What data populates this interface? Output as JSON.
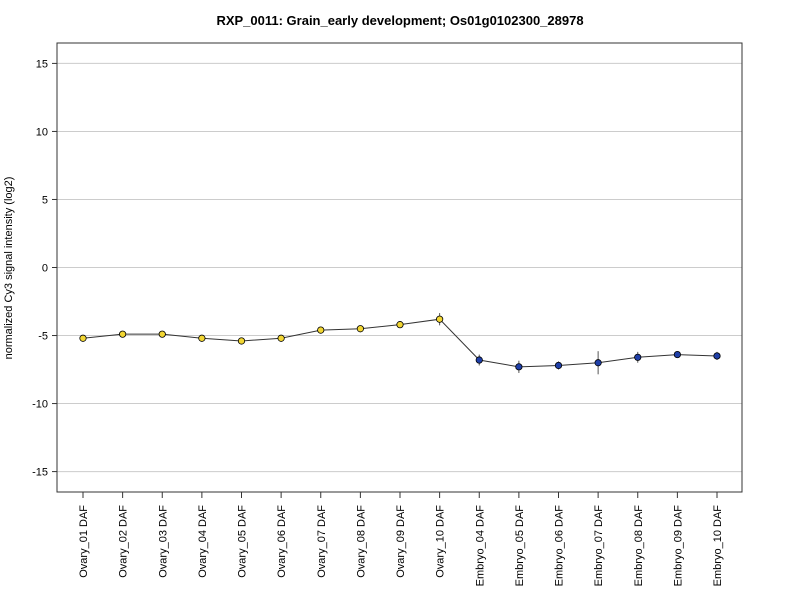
{
  "chart_data": {
    "type": "line",
    "title": "RXP_0011: Grain_early development; Os01g0102300_28978",
    "xlabel": "",
    "ylabel": "normalized Cy3 signal intensity (log2)",
    "ylim": [
      -16.5,
      16.5
    ],
    "yticks": [
      -15,
      -10,
      -5,
      0,
      5,
      10,
      15
    ],
    "grid": true,
    "categories": [
      "Ovary_01 DAF",
      "Ovary_02 DAF",
      "Ovary_03 DAF",
      "Ovary_04 DAF",
      "Ovary_05 DAF",
      "Ovary_06 DAF",
      "Ovary_07 DAF",
      "Ovary_08 DAF",
      "Ovary_09 DAF",
      "Ovary_10 DAF",
      "Embryo_04 DAF",
      "Embryo_05 DAF",
      "Embryo_06 DAF",
      "Embryo_07 DAF",
      "Embryo_08 DAF",
      "Embryo_09 DAF",
      "Embryo_10 DAF"
    ],
    "values": [
      -5.2,
      -4.9,
      -4.9,
      -5.2,
      -5.4,
      -5.2,
      -4.6,
      -4.5,
      -4.2,
      -3.8,
      -6.8,
      -7.3,
      -7.2,
      -7.0,
      -6.6,
      -6.4,
      -6.5
    ],
    "errors": [
      0.2,
      0.15,
      0.15,
      0.2,
      0.2,
      0.2,
      0.2,
      0.2,
      0.2,
      0.45,
      0.4,
      0.45,
      0.3,
      0.85,
      0.4,
      0.2,
      0.3
    ],
    "point_colors": [
      "#f2d633",
      "#f2d633",
      "#f2d633",
      "#f2d633",
      "#f2d633",
      "#f2d633",
      "#f2d633",
      "#f2d633",
      "#f2d633",
      "#f2d633",
      "#1f3fa8",
      "#1f3fa8",
      "#1f3fa8",
      "#1f3fa8",
      "#1f3fa8",
      "#1f3fa8",
      "#1f3fa8"
    ]
  }
}
